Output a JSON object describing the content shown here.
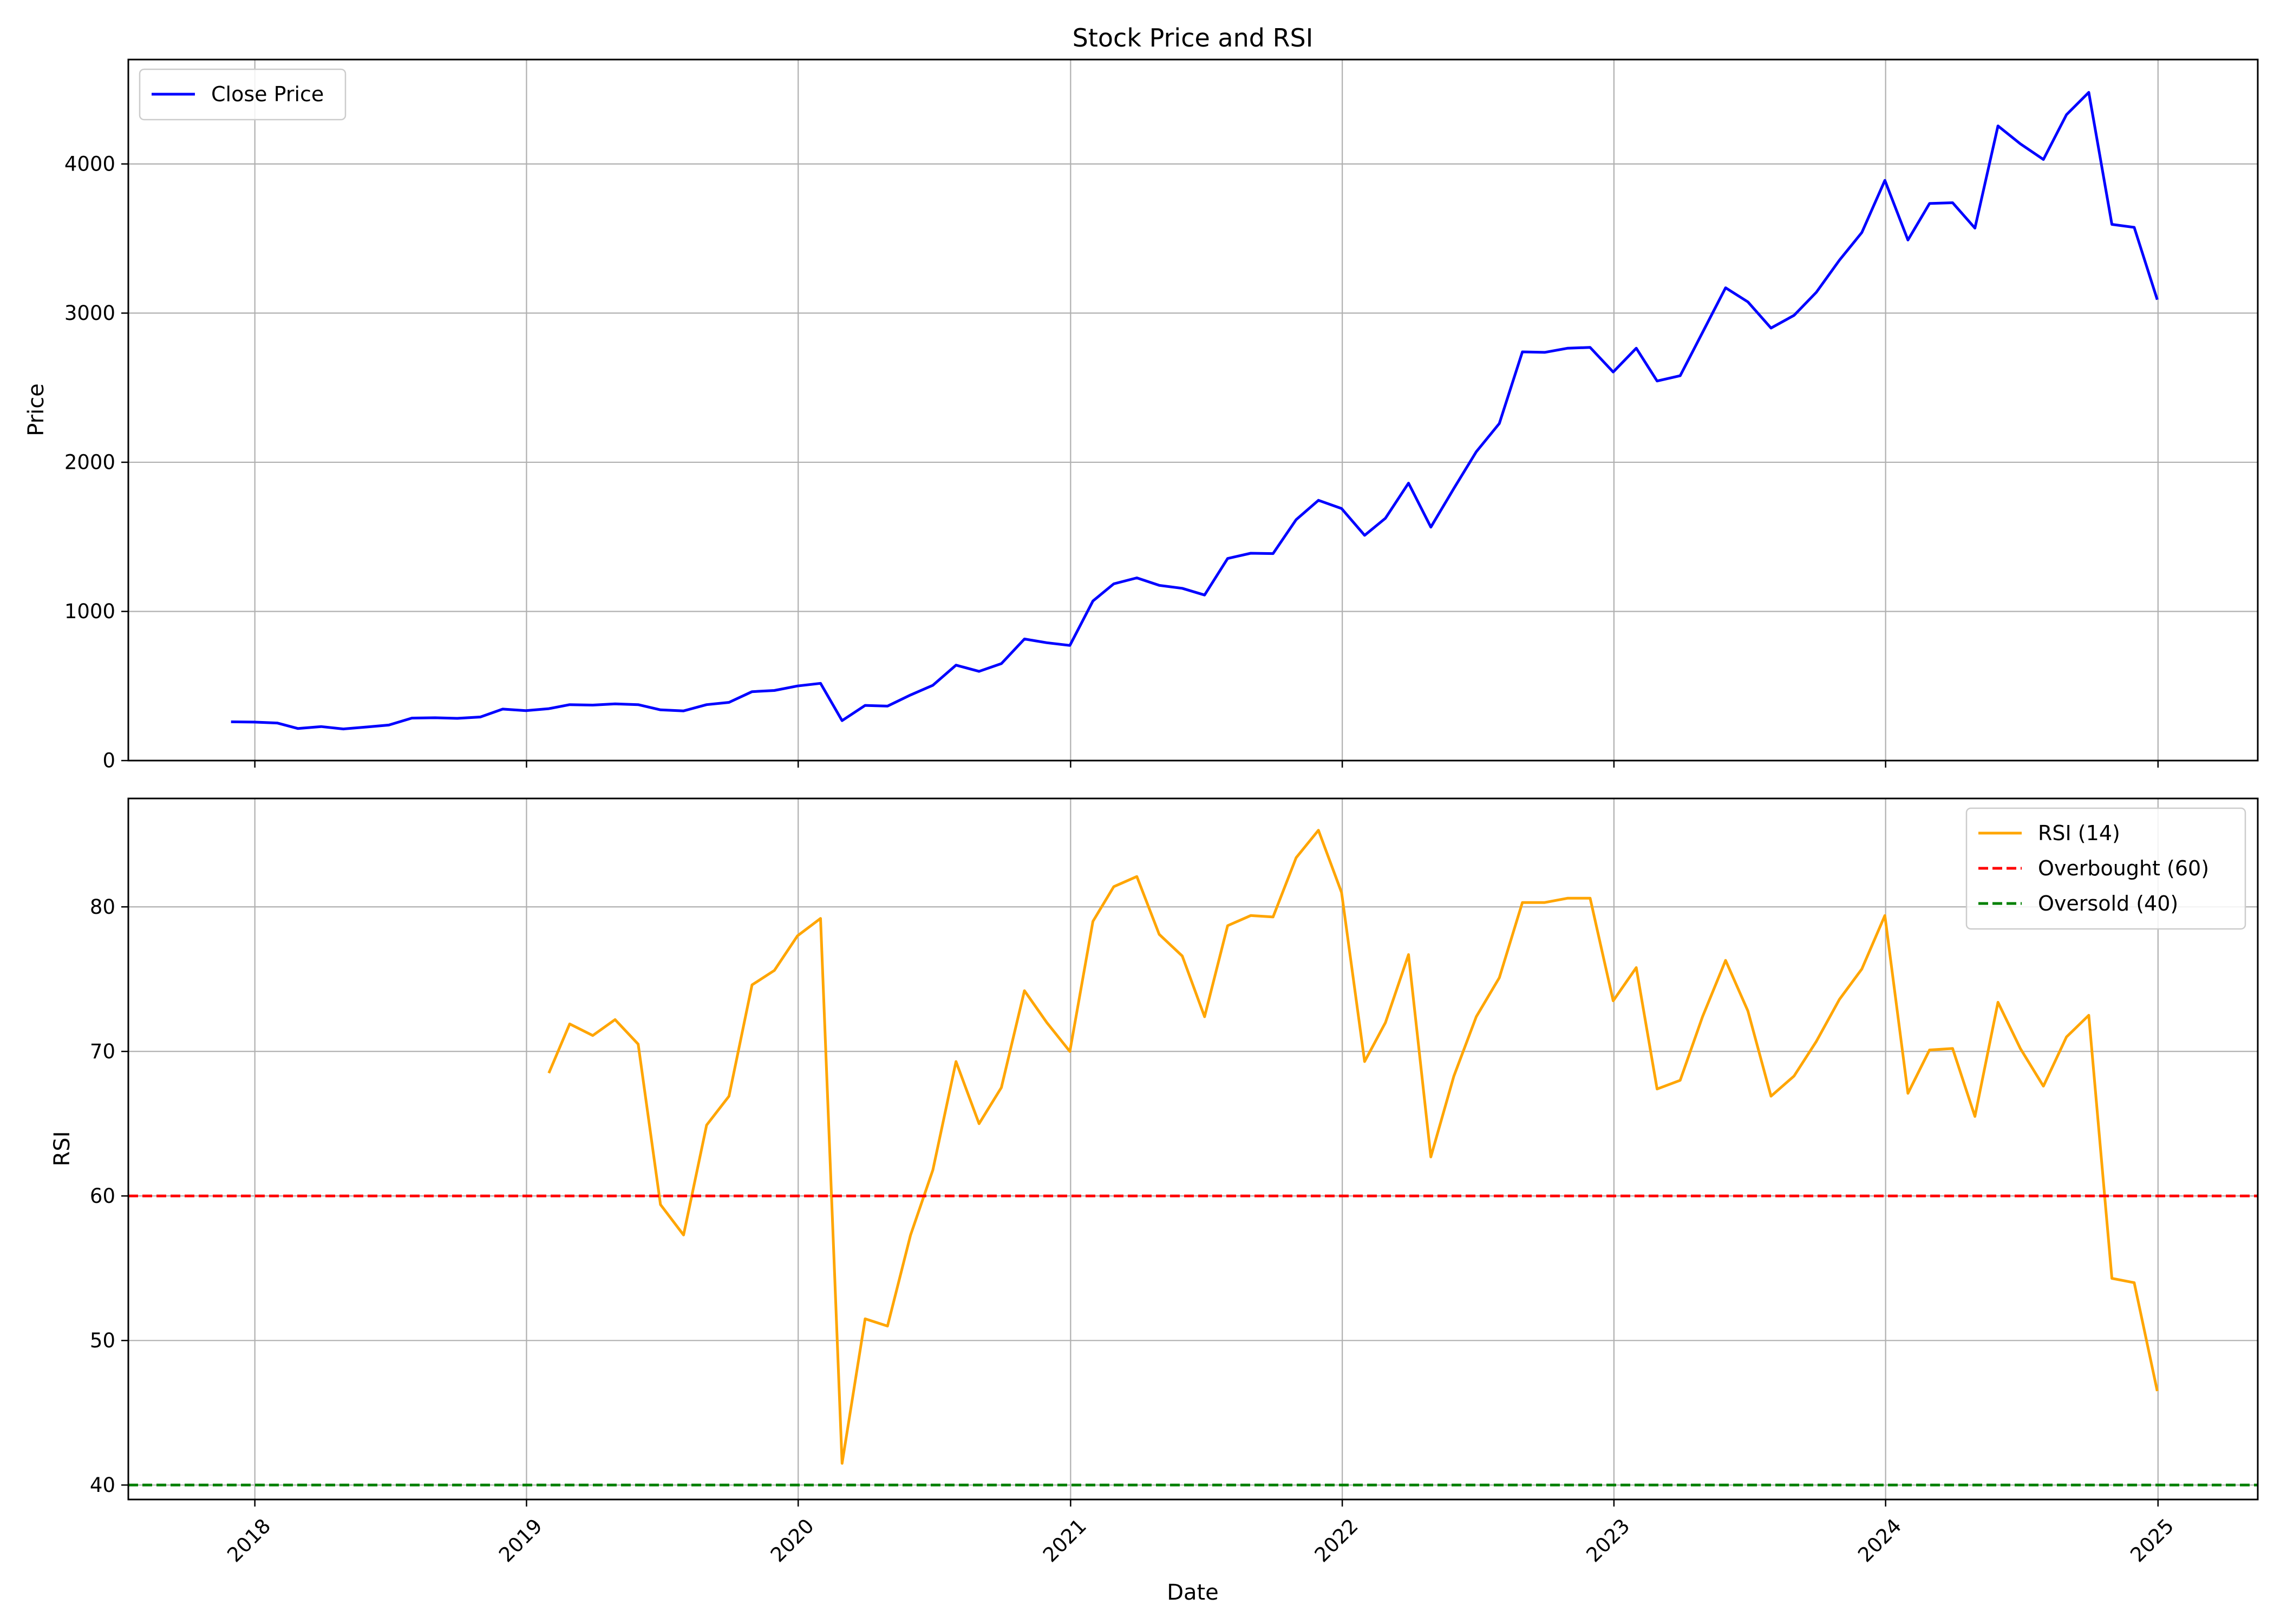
{
  "chart_data": [
    {
      "type": "line",
      "title": "Stock Price and RSI",
      "xlabel": "",
      "ylabel": "Price",
      "ylim": [
        0,
        4700
      ],
      "yticks": [
        0,
        1000,
        2000,
        3000,
        4000
      ],
      "grid": true,
      "legend_position": "top-left",
      "series": [
        {
          "name": "Close Price",
          "color": "#0000ff",
          "x": [
            "2017-11-30",
            "2017-12-31",
            "2018-01-31",
            "2018-02-28",
            "2018-03-31",
            "2018-04-30",
            "2018-05-31",
            "2018-06-30",
            "2018-07-31",
            "2018-08-31",
            "2018-09-30",
            "2018-10-31",
            "2018-11-30",
            "2018-12-31",
            "2019-01-31",
            "2019-02-28",
            "2019-03-31",
            "2019-04-30",
            "2019-05-31",
            "2019-06-30",
            "2019-07-31",
            "2019-08-31",
            "2019-09-30",
            "2019-10-31",
            "2019-11-30",
            "2019-12-31",
            "2020-01-31",
            "2020-02-29",
            "2020-03-31",
            "2020-04-30",
            "2020-05-31",
            "2020-06-30",
            "2020-07-31",
            "2020-08-31",
            "2020-09-30",
            "2020-10-31",
            "2020-11-30",
            "2020-12-31",
            "2021-01-31",
            "2021-02-28",
            "2021-03-31",
            "2021-04-30",
            "2021-05-31",
            "2021-06-30",
            "2021-07-31",
            "2021-08-31",
            "2021-09-30",
            "2021-10-31",
            "2021-11-30",
            "2021-12-31",
            "2022-01-31",
            "2022-02-28",
            "2022-03-31",
            "2022-04-30",
            "2022-05-31",
            "2022-06-30",
            "2022-07-31",
            "2022-08-31",
            "2022-09-30",
            "2022-10-31",
            "2022-11-30",
            "2022-12-31",
            "2023-01-31",
            "2023-02-28",
            "2023-03-31",
            "2023-04-30",
            "2023-05-31",
            "2023-06-30",
            "2023-07-31",
            "2023-08-31",
            "2023-09-30",
            "2023-10-31",
            "2023-11-30",
            "2023-12-31",
            "2024-01-31",
            "2024-02-29",
            "2024-03-31",
            "2024-04-30",
            "2024-05-31",
            "2024-06-30",
            "2024-07-31",
            "2024-08-31",
            "2024-09-30",
            "2024-10-31",
            "2024-11-30",
            "2024-12-31"
          ],
          "y": [
            260,
            258,
            252,
            215,
            228,
            212,
            225,
            238,
            285,
            287,
            283,
            292,
            345,
            335,
            348,
            375,
            372,
            380,
            375,
            340,
            333,
            375,
            390,
            462,
            470,
            500,
            518,
            268,
            370,
            365,
            440,
            505,
            640,
            598,
            650,
            815,
            790,
            772,
            1070,
            1185,
            1225,
            1175,
            1155,
            1110,
            1355,
            1390,
            1388,
            1615,
            1745,
            1690,
            1510,
            1625,
            1860,
            1565,
            1825,
            2070,
            2260,
            2740,
            2737,
            2765,
            2770,
            2605,
            2765,
            2545,
            2580,
            2870,
            3170,
            3075,
            2900,
            2985,
            3140,
            3355,
            3540,
            3890,
            3490,
            3735,
            3740,
            3570,
            4255,
            4135,
            4030,
            4330,
            4480,
            3595,
            3575,
            3090
          ]
        }
      ]
    },
    {
      "type": "line",
      "title": "",
      "xlabel": "Date",
      "ylabel": "RSI",
      "ylim": [
        39,
        87.5
      ],
      "yticks": [
        40,
        50,
        60,
        70,
        80
      ],
      "xticks": [
        "2018",
        "2019",
        "2020",
        "2021",
        "2022",
        "2023",
        "2024",
        "2025"
      ],
      "xlim": [
        "2017-07-15",
        "2025-05-15"
      ],
      "grid": true,
      "legend_position": "top-right",
      "series": [
        {
          "name": "RSI (14)",
          "color": "#ffa500",
          "x": [
            "2019-01-31",
            "2019-02-28",
            "2019-03-31",
            "2019-04-30",
            "2019-05-31",
            "2019-06-30",
            "2019-07-31",
            "2019-08-31",
            "2019-09-30",
            "2019-10-31",
            "2019-11-30",
            "2019-12-31",
            "2020-01-31",
            "2020-02-29",
            "2020-03-31",
            "2020-04-30",
            "2020-05-31",
            "2020-06-30",
            "2020-07-31",
            "2020-08-31",
            "2020-09-30",
            "2020-10-31",
            "2020-11-30",
            "2020-12-31",
            "2021-01-31",
            "2021-02-28",
            "2021-03-31",
            "2021-04-30",
            "2021-05-31",
            "2021-06-30",
            "2021-07-31",
            "2021-08-31",
            "2021-09-30",
            "2021-10-31",
            "2021-11-30",
            "2021-12-31",
            "2022-01-31",
            "2022-02-28",
            "2022-03-31",
            "2022-04-30",
            "2022-05-31",
            "2022-06-30",
            "2022-07-31",
            "2022-08-31",
            "2022-09-30",
            "2022-10-31",
            "2022-11-30",
            "2022-12-31",
            "2023-01-31",
            "2023-02-28",
            "2023-03-31",
            "2023-04-30",
            "2023-05-31",
            "2023-06-30",
            "2023-07-31",
            "2023-08-31",
            "2023-09-30",
            "2023-10-31",
            "2023-11-30",
            "2023-12-31",
            "2024-01-31",
            "2024-02-29",
            "2024-03-31",
            "2024-04-30",
            "2024-05-31",
            "2024-06-30",
            "2024-07-31",
            "2024-08-31",
            "2024-09-30",
            "2024-10-31",
            "2024-11-30",
            "2024-12-31"
          ],
          "y": [
            68.5,
            71.9,
            71.1,
            72.2,
            70.5,
            59.4,
            57.3,
            64.9,
            66.9,
            74.6,
            75.6,
            78.0,
            79.2,
            41.5,
            51.5,
            51.0,
            57.3,
            61.8,
            69.3,
            65.0,
            67.5,
            74.2,
            72.0,
            70.0,
            79.0,
            81.4,
            82.1,
            78.1,
            76.6,
            72.4,
            78.7,
            79.4,
            79.3,
            83.4,
            85.3,
            81.0,
            69.3,
            72.0,
            76.7,
            62.7,
            68.3,
            72.4,
            75.1,
            80.3,
            80.3,
            80.6,
            80.6,
            73.5,
            75.8,
            67.4,
            68.0,
            72.4,
            76.3,
            72.8,
            66.9,
            68.3,
            70.7,
            73.6,
            75.7,
            79.4,
            67.1,
            70.1,
            70.2,
            65.5,
            73.4,
            70.2,
            67.6,
            71.0,
            72.5,
            54.3,
            54.0,
            46.5
          ]
        },
        {
          "name": "Overbought (60)",
          "color": "#ff0000",
          "dashed": true,
          "y_const": 60
        },
        {
          "name": "Oversold (40)",
          "color": "#008000",
          "dashed": true,
          "y_const": 40
        }
      ]
    }
  ]
}
